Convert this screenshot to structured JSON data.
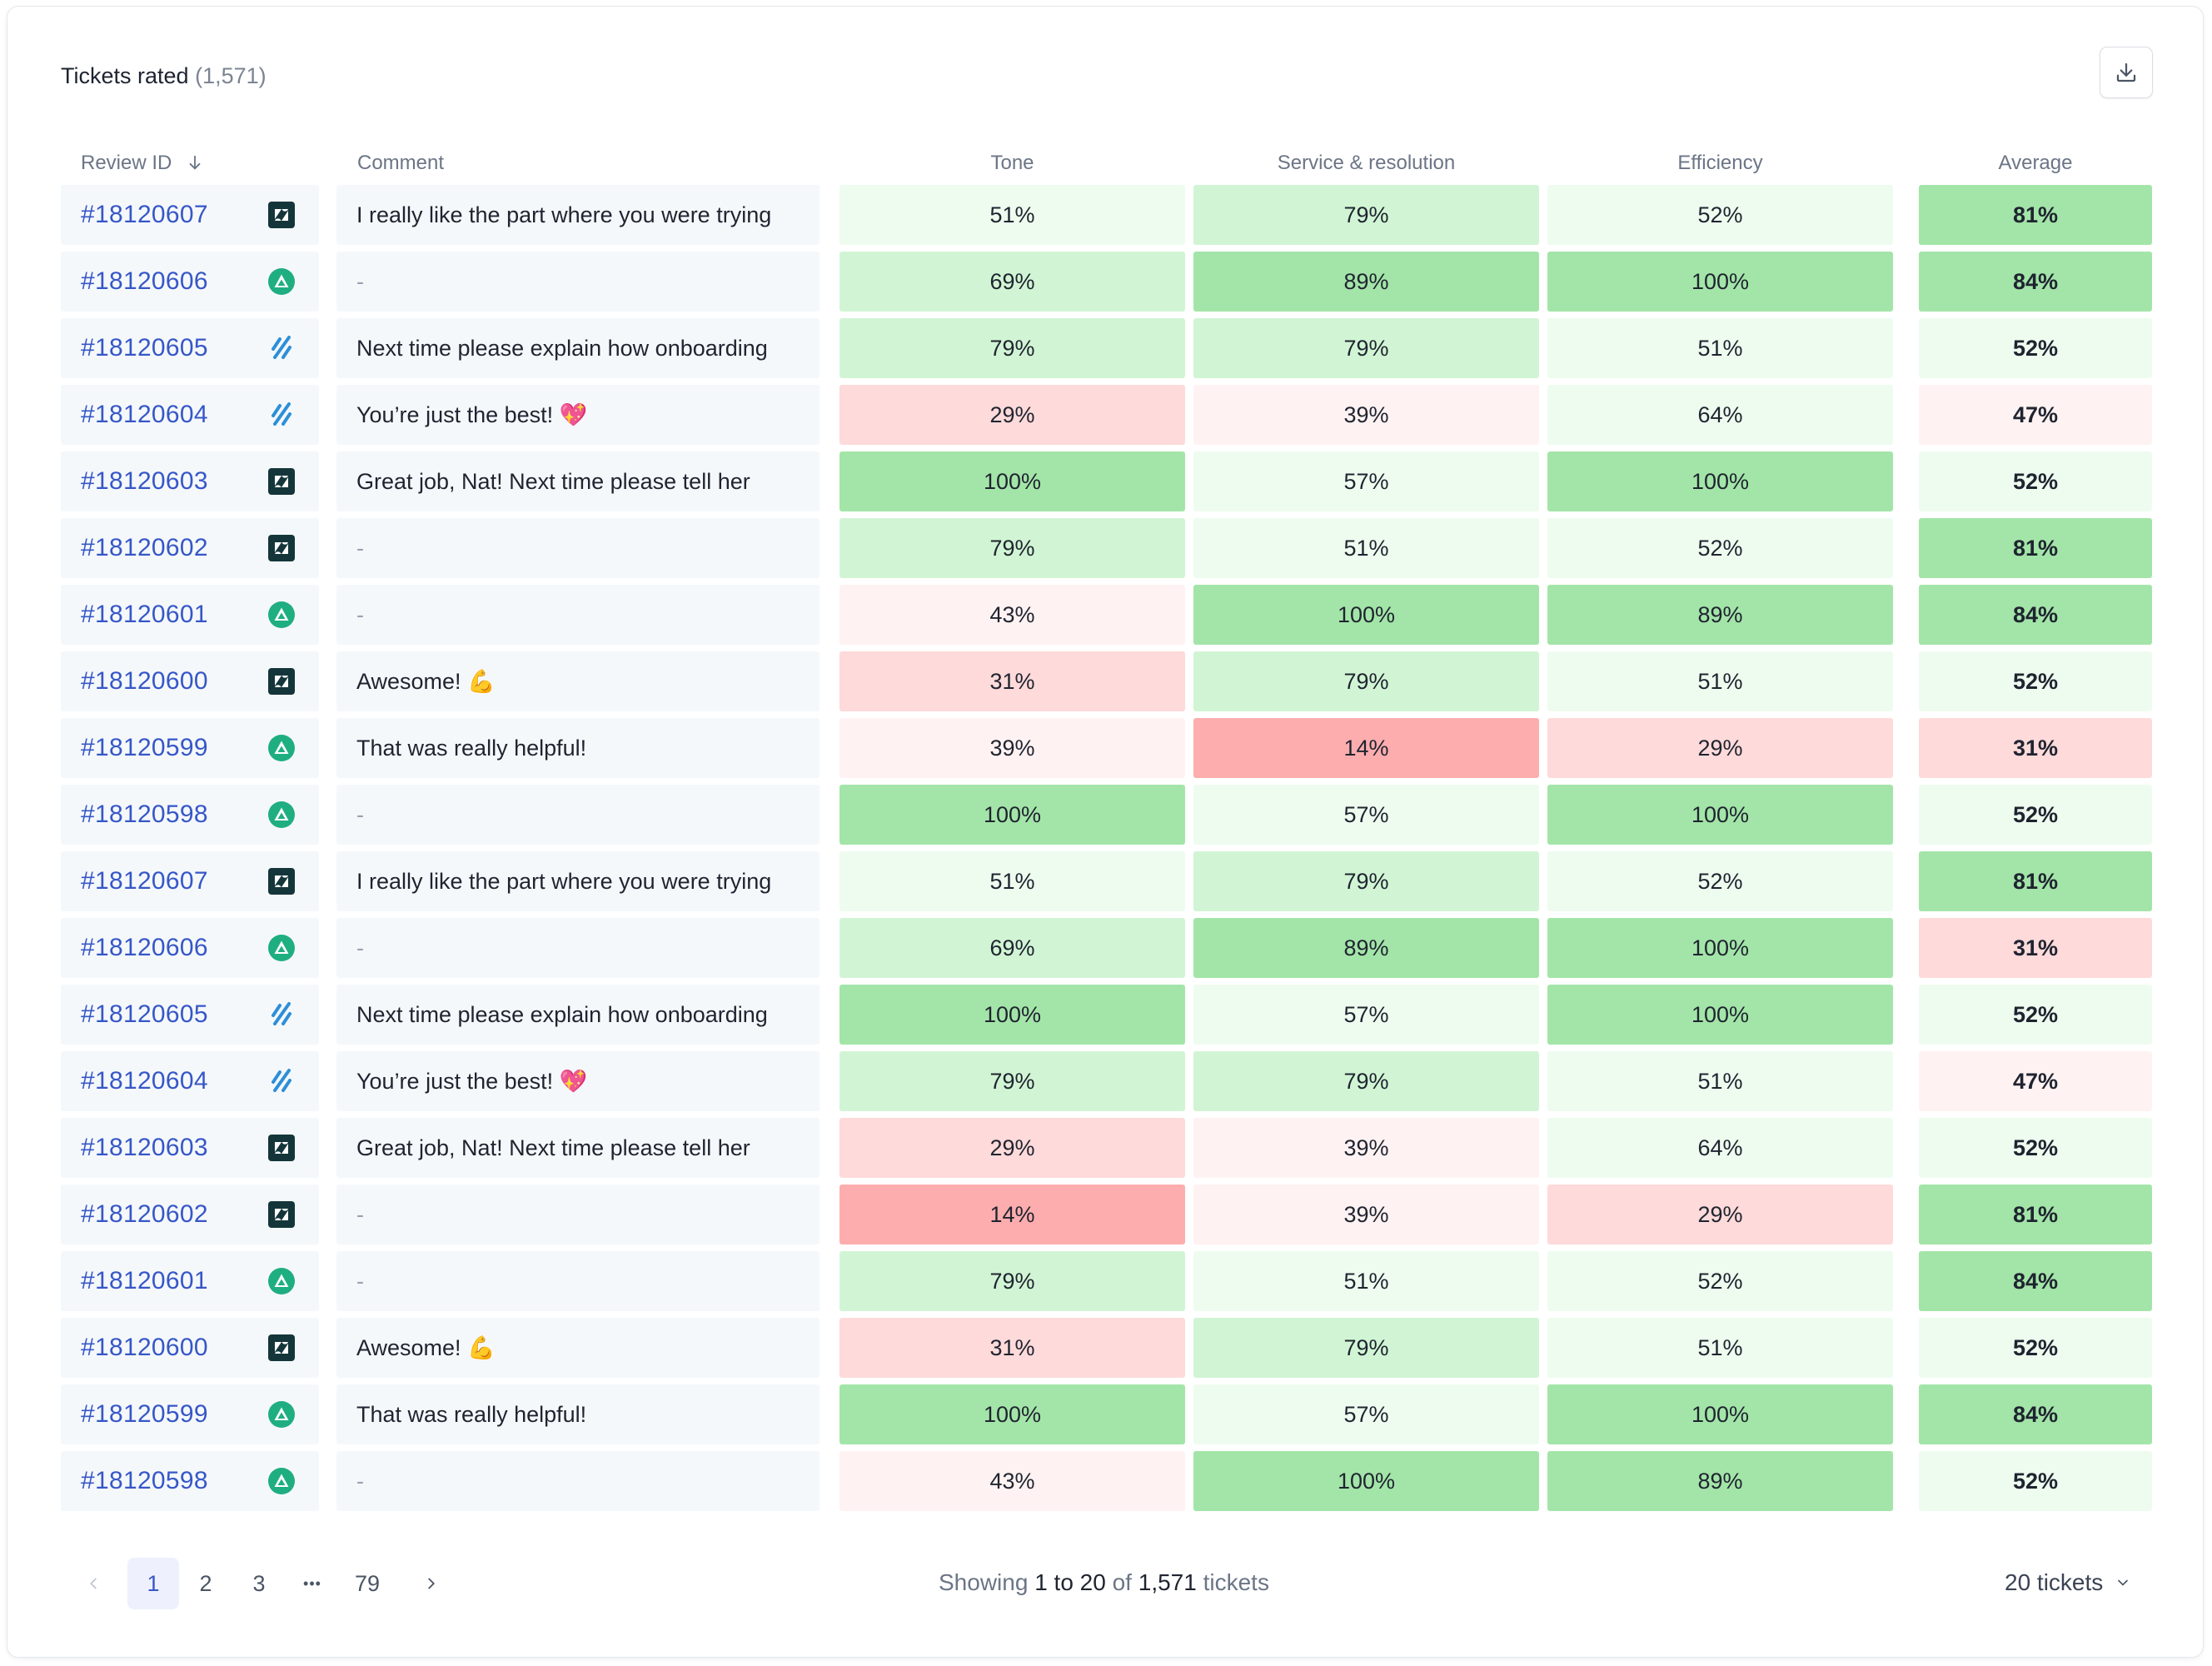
{
  "header": {
    "title": "Tickets rated",
    "count": "(1,571)",
    "download_icon": "download-icon"
  },
  "columns": {
    "review_id": "Review ID",
    "comment": "Comment",
    "tone": "Tone",
    "service": "Service & resolution",
    "efficiency": "Efficiency",
    "average": "Average"
  },
  "colors": {
    "scale_very_high": "#a3e5a8",
    "scale_high": "#d1f5d4",
    "scale_mid": "#eefcef",
    "scale_lowmid": "#fff2f2",
    "scale_low": "#fedada",
    "scale_very_low": "#fdadae",
    "link": "#3657c7",
    "zendesk": "#14363a",
    "front": "#1fae80",
    "intercom": "#2d8fd8"
  },
  "rows": [
    {
      "id": "#18120607",
      "source": "zendesk",
      "comment": "I really like the part where you were trying",
      "tone": "51%",
      "service": "79%",
      "efficiency": "52%",
      "average": "81%"
    },
    {
      "id": "#18120606",
      "source": "front",
      "comment": "-",
      "tone": "69%",
      "service": "89%",
      "efficiency": "100%",
      "average": "84%"
    },
    {
      "id": "#18120605",
      "source": "intercom",
      "comment": "Next time please explain how onboarding",
      "tone": "79%",
      "service": "79%",
      "efficiency": "51%",
      "average": "52%"
    },
    {
      "id": "#18120604",
      "source": "intercom",
      "comment": "You’re just the best! 💖",
      "tone": "29%",
      "service": "39%",
      "efficiency": "64%",
      "average": "47%"
    },
    {
      "id": "#18120603",
      "source": "zendesk",
      "comment": "Great job, Nat! Next time please tell her",
      "tone": "100%",
      "service": "57%",
      "efficiency": "100%",
      "average": "52%"
    },
    {
      "id": "#18120602",
      "source": "zendesk",
      "comment": "-",
      "tone": "79%",
      "service": "51%",
      "efficiency": "52%",
      "average": "81%"
    },
    {
      "id": "#18120601",
      "source": "front",
      "comment": "-",
      "tone": "43%",
      "service": "100%",
      "efficiency": "89%",
      "average": "84%"
    },
    {
      "id": "#18120600",
      "source": "zendesk",
      "comment": "Awesome! 💪",
      "tone": "31%",
      "service": "79%",
      "efficiency": "51%",
      "average": "52%"
    },
    {
      "id": "#18120599",
      "source": "front",
      "comment": "That was really helpful!",
      "tone": "39%",
      "service": "14%",
      "efficiency": "29%",
      "average": "31%"
    },
    {
      "id": "#18120598",
      "source": "front",
      "comment": "-",
      "tone": "100%",
      "service": "57%",
      "efficiency": "100%",
      "average": "52%"
    },
    {
      "id": "#18120607",
      "source": "zendesk",
      "comment": "I really like the part where you were trying",
      "tone": "51%",
      "service": "79%",
      "efficiency": "52%",
      "average": "81%"
    },
    {
      "id": "#18120606",
      "source": "front",
      "comment": "-",
      "tone": "69%",
      "service": "89%",
      "efficiency": "100%",
      "average": "31%"
    },
    {
      "id": "#18120605",
      "source": "intercom",
      "comment": "Next time please explain how onboarding",
      "tone": "100%",
      "service": "57%",
      "efficiency": "100%",
      "average": "52%"
    },
    {
      "id": "#18120604",
      "source": "intercom",
      "comment": "You’re just the best! 💖",
      "tone": "79%",
      "service": "79%",
      "efficiency": "51%",
      "average": "47%"
    },
    {
      "id": "#18120603",
      "source": "zendesk",
      "comment": "Great job, Nat! Next time please tell her",
      "tone": "29%",
      "service": "39%",
      "efficiency": "64%",
      "average": "52%"
    },
    {
      "id": "#18120602",
      "source": "zendesk",
      "comment": "-",
      "tone": "14%",
      "service": "39%",
      "efficiency": "29%",
      "average": "81%"
    },
    {
      "id": "#18120601",
      "source": "front",
      "comment": "-",
      "tone": "79%",
      "service": "51%",
      "efficiency": "52%",
      "average": "84%"
    },
    {
      "id": "#18120600",
      "source": "zendesk",
      "comment": "Awesome! 💪",
      "tone": "31%",
      "service": "79%",
      "efficiency": "51%",
      "average": "52%"
    },
    {
      "id": "#18120599",
      "source": "front",
      "comment": "That was really helpful!",
      "tone": "100%",
      "service": "57%",
      "efficiency": "100%",
      "average": "84%"
    },
    {
      "id": "#18120598",
      "source": "front",
      "comment": "-",
      "tone": "43%",
      "service": "100%",
      "efficiency": "89%",
      "average": "52%"
    }
  ],
  "pagination": {
    "prev_icon": "chevron-left-icon",
    "pages": [
      "1",
      "2",
      "3"
    ],
    "ellipsis": "•••",
    "last_page": "79",
    "current": "1",
    "next_icon": "chevron-right-icon",
    "summary_prefix": "Showing",
    "summary_range": "1 to 20",
    "summary_of": "of",
    "summary_total": "1,571",
    "summary_suffix": "tickets",
    "per_page": "20 tickets",
    "per_page_icon": "chevron-down-icon"
  }
}
